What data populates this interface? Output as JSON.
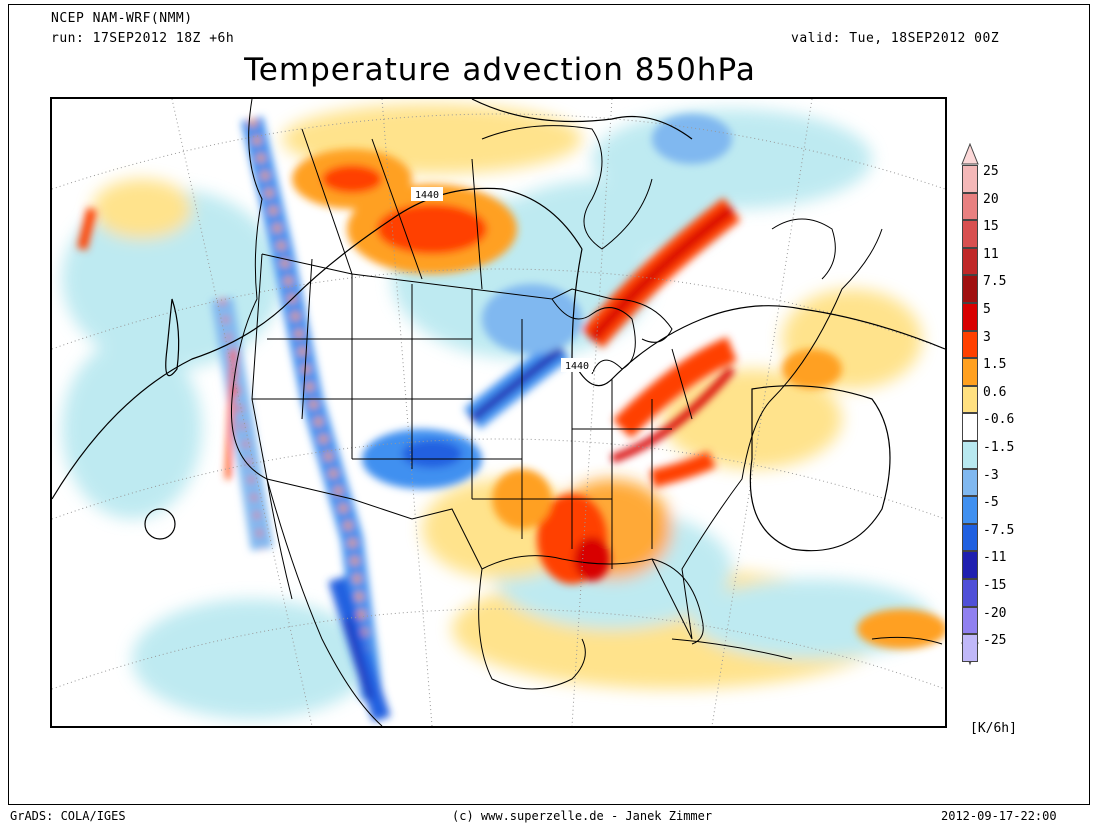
{
  "header": {
    "model": "NCEP NAM-WRF(NMM)",
    "run": "run: 17SEP2012 18Z +6h",
    "valid": "valid: Tue, 18SEP2012 00Z",
    "title": "Temperature advection 850hPa"
  },
  "map": {
    "contour_labels": [
      "1440",
      "1440"
    ]
  },
  "legend": {
    "units": "[K/6h]",
    "levels": [
      {
        "label": "25",
        "color": "#f4b8b8"
      },
      {
        "label": "20",
        "color": "#e88080"
      },
      {
        "label": "15",
        "color": "#d85050"
      },
      {
        "label": "11",
        "color": "#c02828"
      },
      {
        "label": "7.5",
        "color": "#a01010"
      },
      {
        "label": "5",
        "color": "#d80000"
      },
      {
        "label": "3",
        "color": "#ff4000"
      },
      {
        "label": "1.5",
        "color": "#ffa020"
      },
      {
        "label": "0.6",
        "color": "#ffe080"
      },
      {
        "label": "-0.6",
        "color": "#ffffff"
      },
      {
        "label": "-1.5",
        "color": "#b8e8f0"
      },
      {
        "label": "-3",
        "color": "#80b8f0"
      },
      {
        "label": "-5",
        "color": "#4090f0"
      },
      {
        "label": "-7.5",
        "color": "#2060e0"
      },
      {
        "label": "-11",
        "color": "#2020b0"
      },
      {
        "label": "-15",
        "color": "#5050d8"
      },
      {
        "label": "-20",
        "color": "#9080f0"
      },
      {
        "label": "-25",
        "color": "#c0b8f8"
      }
    ],
    "top_arrow_color": "#fcd8d8",
    "bottom_arrow_color": "#e0d8fc"
  },
  "footer": {
    "left": "GrADS: COLA/IGES",
    "center": "(c) www.superzelle.de - Janek Zimmer",
    "right": "2012-09-17-22:00"
  }
}
